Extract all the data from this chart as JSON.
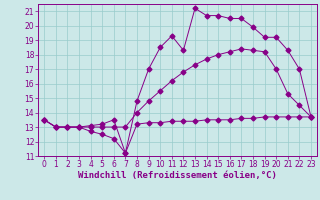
{
  "title": "",
  "xlabel": "Windchill (Refroidissement éolien,°C)",
  "ylabel": "",
  "bg_color": "#cce8e8",
  "line_color": "#880088",
  "grid_color": "#99cccc",
  "xlim": [
    -0.5,
    23.5
  ],
  "ylim": [
    11,
    21.5
  ],
  "xticks": [
    0,
    1,
    2,
    3,
    4,
    5,
    6,
    7,
    8,
    9,
    10,
    11,
    12,
    13,
    14,
    15,
    16,
    17,
    18,
    19,
    20,
    21,
    22,
    23
  ],
  "yticks": [
    11,
    12,
    13,
    14,
    15,
    16,
    17,
    18,
    19,
    20,
    21
  ],
  "line1_x": [
    0,
    1,
    2,
    3,
    4,
    5,
    6,
    7,
    8,
    9,
    10,
    11,
    12,
    13,
    14,
    15,
    16,
    17,
    18,
    19,
    20,
    21,
    22,
    23
  ],
  "line1_y": [
    13.5,
    13.0,
    13.0,
    13.0,
    12.7,
    12.5,
    12.2,
    11.2,
    13.2,
    13.3,
    13.3,
    13.4,
    13.4,
    13.4,
    13.5,
    13.5,
    13.5,
    13.6,
    13.6,
    13.7,
    13.7,
    13.7,
    13.7,
    13.7
  ],
  "line2_x": [
    0,
    1,
    2,
    3,
    4,
    5,
    6,
    7,
    8,
    9,
    10,
    11,
    12,
    13,
    14,
    15,
    16,
    17,
    18,
    19,
    20,
    21,
    22,
    23
  ],
  "line2_y": [
    13.5,
    13.0,
    13.0,
    13.0,
    13.0,
    13.0,
    13.0,
    13.0,
    14.0,
    14.8,
    15.5,
    16.2,
    16.8,
    17.3,
    17.7,
    18.0,
    18.2,
    18.4,
    18.3,
    18.2,
    17.0,
    15.3,
    14.5,
    13.7
  ],
  "line3_x": [
    0,
    1,
    2,
    3,
    4,
    5,
    6,
    7,
    8,
    9,
    10,
    11,
    12,
    13,
    14,
    15,
    16,
    17,
    18,
    19,
    20,
    21,
    22,
    23
  ],
  "line3_y": [
    13.5,
    13.0,
    13.0,
    13.0,
    13.1,
    13.2,
    13.5,
    11.2,
    14.8,
    17.0,
    18.5,
    19.3,
    18.3,
    21.2,
    20.7,
    20.7,
    20.5,
    20.5,
    19.9,
    19.2,
    19.2,
    18.3,
    17.0,
    13.7
  ],
  "tick_fontsize": 5.5,
  "xlabel_fontsize": 6.5,
  "marker": "D",
  "marker_size": 2.5,
  "linewidth": 0.7
}
